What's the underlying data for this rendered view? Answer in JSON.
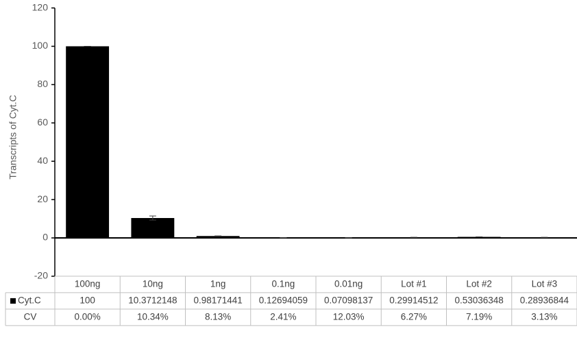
{
  "chart_data": {
    "type": "bar",
    "y_label": "Transcripts of Cyt.C",
    "categories": [
      "100ng",
      "10ng",
      "1ng",
      "0.1ng",
      "0.01ng",
      "Lot #1",
      "Lot #2",
      "Lot #3"
    ],
    "series": [
      {
        "name": "Cyt.C",
        "color": "#000000",
        "values": [
          100,
          10.3712148,
          0.98171441,
          0.12694059,
          0.07098137,
          0.29914512,
          0.53036348,
          0.28936844
        ],
        "errors": [
          0,
          1.07,
          0.08,
          0.003,
          0.009,
          0.019,
          0.038,
          0.009
        ]
      }
    ],
    "cv_row": {
      "label": "CV",
      "values": [
        "0.00%",
        "10.34%",
        "8.13%",
        "2.41%",
        "12.03%",
        "6.27%",
        "7.19%",
        "3.13%"
      ]
    },
    "ylim": [
      -20,
      120
    ],
    "yticks": [
      -20,
      0,
      20,
      40,
      60,
      80,
      100,
      120
    ],
    "grid": false
  }
}
